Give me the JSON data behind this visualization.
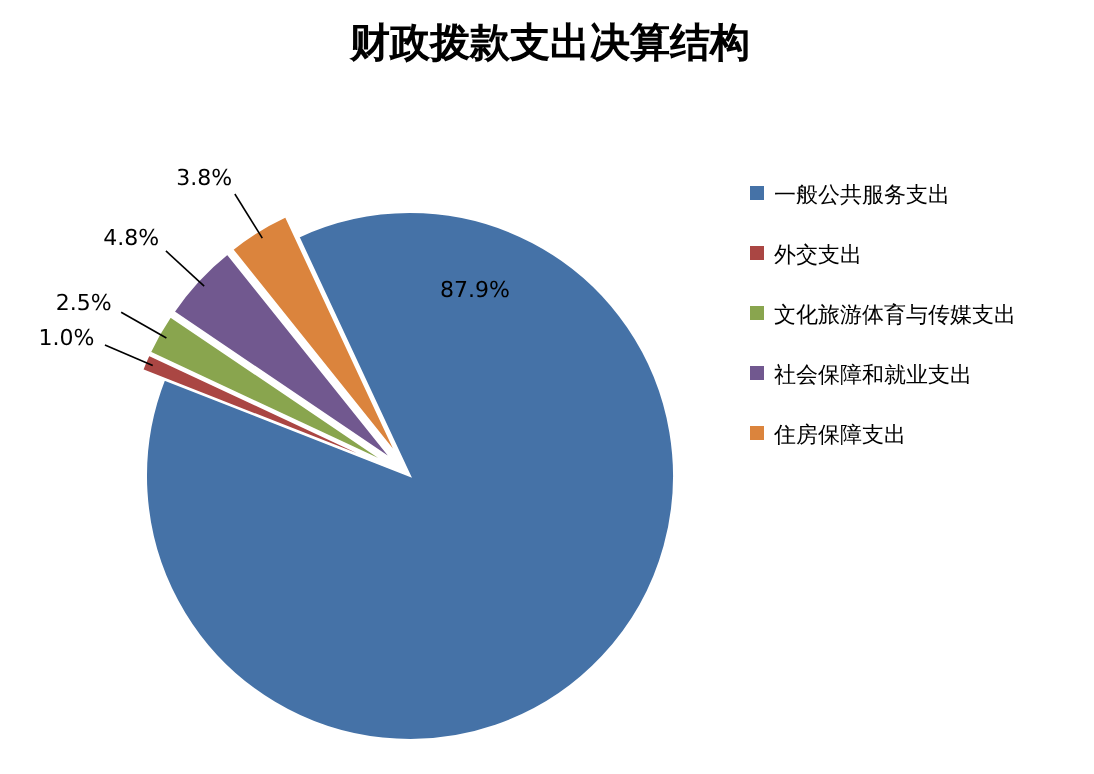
{
  "chart_data": {
    "type": "pie",
    "title": "财政拨款支出决算结构",
    "categories": [
      "一般公共服务支出",
      "外交支出",
      "文化旅游体育与传媒支出",
      "社会保障和就业支出",
      "住房保障支出"
    ],
    "values": [
      87.9,
      1.0,
      2.5,
      4.8,
      3.8
    ],
    "colors": [
      "#4572a7",
      "#aa4643",
      "#89a54e",
      "#71588f",
      "#db843d"
    ],
    "value_labels": [
      "87.9%",
      "1.0%",
      "2.5%",
      "4.8%",
      "3.8%"
    ],
    "legend": "right"
  }
}
